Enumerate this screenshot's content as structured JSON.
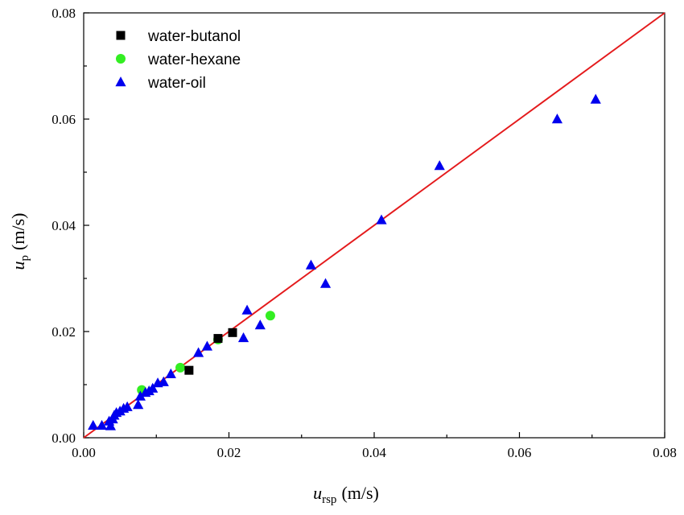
{
  "chart_data": {
    "type": "scatter",
    "xlabel": {
      "var": "u",
      "sub": "rsp",
      "unit": "(m/s)"
    },
    "ylabel": {
      "var": "u",
      "sub": "p",
      "unit": "(m/s)"
    },
    "xlim": [
      0,
      0.08
    ],
    "ylim": [
      0,
      0.08
    ],
    "xticks": [
      "0.00",
      "0.02",
      "0.04",
      "0.06",
      "0.08"
    ],
    "yticks": [
      "0.00",
      "0.02",
      "0.04",
      "0.06",
      "0.08"
    ],
    "grid": false,
    "legend_position": "top-left",
    "reference_line": {
      "x": [
        0,
        0.08
      ],
      "y": [
        0,
        0.08
      ],
      "color": "#e41a1c"
    },
    "series": [
      {
        "name": "water-butanol",
        "marker": "square",
        "color": "#000000",
        "points": [
          [
            0.0145,
            0.0127
          ],
          [
            0.0185,
            0.0187
          ],
          [
            0.0205,
            0.0198
          ]
        ]
      },
      {
        "name": "water-hexane",
        "marker": "circle",
        "color": "#33ee22",
        "points": [
          [
            0.008,
            0.009
          ],
          [
            0.0133,
            0.0132
          ],
          [
            0.0185,
            0.0185
          ],
          [
            0.0257,
            0.023
          ]
        ]
      },
      {
        "name": "water-oil",
        "marker": "triangle",
        "color": "#0000ee",
        "points": [
          [
            0.0013,
            0.0023
          ],
          [
            0.0025,
            0.0023
          ],
          [
            0.0035,
            0.0031
          ],
          [
            0.0037,
            0.0022
          ],
          [
            0.004,
            0.0035
          ],
          [
            0.0042,
            0.0042
          ],
          [
            0.0045,
            0.0047
          ],
          [
            0.005,
            0.005
          ],
          [
            0.0055,
            0.0055
          ],
          [
            0.006,
            0.0058
          ],
          [
            0.0075,
            0.0062
          ],
          [
            0.0078,
            0.0078
          ],
          [
            0.0085,
            0.0085
          ],
          [
            0.009,
            0.0088
          ],
          [
            0.0095,
            0.0093
          ],
          [
            0.0102,
            0.0103
          ],
          [
            0.011,
            0.0105
          ],
          [
            0.012,
            0.012
          ],
          [
            0.0158,
            0.016
          ],
          [
            0.017,
            0.0172
          ],
          [
            0.022,
            0.0188
          ],
          [
            0.0225,
            0.024
          ],
          [
            0.0243,
            0.0212
          ],
          [
            0.0313,
            0.0325
          ],
          [
            0.0333,
            0.029
          ],
          [
            0.041,
            0.041
          ],
          [
            0.049,
            0.0512
          ],
          [
            0.0652,
            0.06
          ],
          [
            0.0705,
            0.0637
          ]
        ]
      }
    ]
  }
}
